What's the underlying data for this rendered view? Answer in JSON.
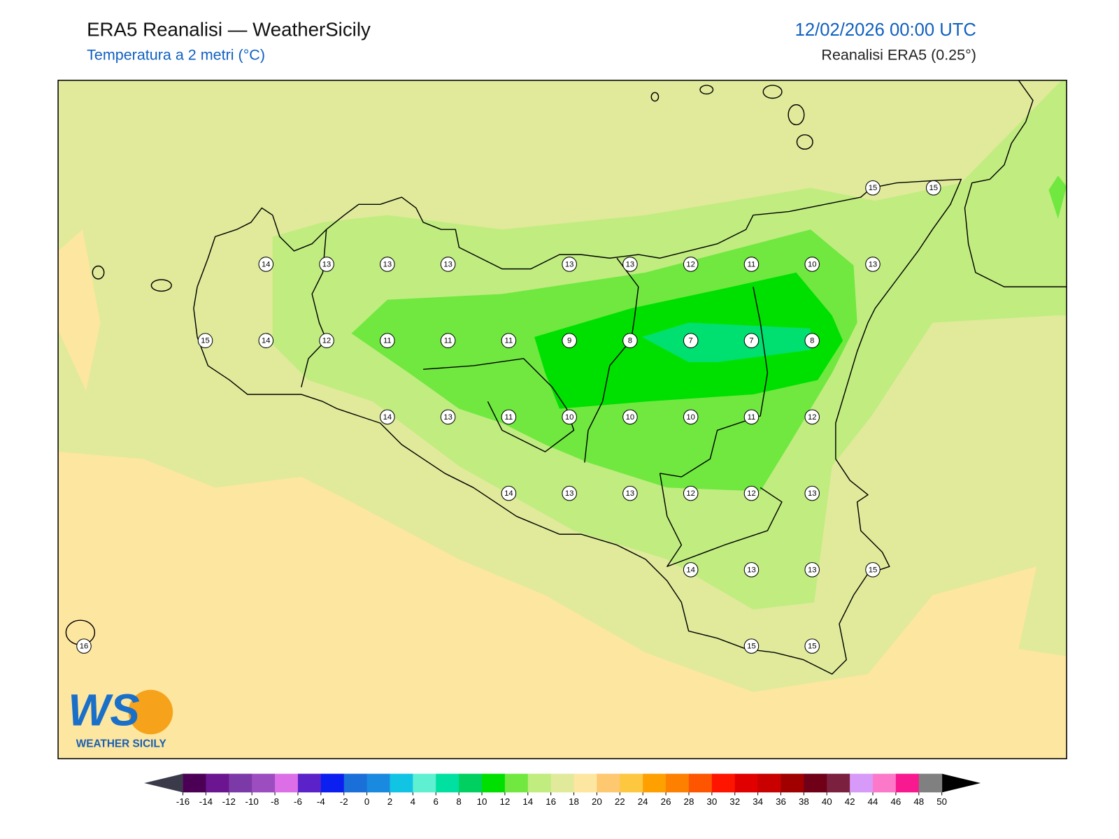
{
  "header": {
    "title": "ERA5 Reanalisi — WeatherSicily",
    "subtitle": "Temperatura a 2 metri (°C)",
    "datetime": "12/02/2026 00:00 UTC",
    "source": "Reanalisi ERA5 (0.25°)"
  },
  "stations": {
    "grid": [
      [
        null,
        null,
        null,
        null,
        null,
        null,
        null,
        null,
        null,
        null,
        null,
        null,
        null,
        15,
        15
      ],
      [
        null,
        null,
        null,
        14,
        13,
        13,
        13,
        null,
        13,
        13,
        12,
        11,
        10,
        13,
        null
      ],
      [
        null,
        null,
        15,
        14,
        12,
        11,
        11,
        11,
        9,
        8,
        7,
        7,
        8,
        null,
        null
      ],
      [
        null,
        null,
        null,
        null,
        null,
        14,
        13,
        11,
        10,
        10,
        10,
        11,
        12,
        null,
        null
      ],
      [
        null,
        null,
        null,
        null,
        null,
        null,
        null,
        14,
        13,
        13,
        12,
        12,
        13,
        null,
        null
      ],
      [
        null,
        null,
        null,
        null,
        null,
        null,
        null,
        null,
        null,
        null,
        14,
        13,
        13,
        15,
        null
      ],
      [
        16,
        null,
        null,
        null,
        null,
        null,
        null,
        null,
        null,
        null,
        null,
        15,
        15,
        null,
        null
      ]
    ]
  },
  "colorbar": {
    "ticks": [
      -16,
      -14,
      -12,
      -10,
      -8,
      -6,
      -4,
      -2,
      0,
      2,
      4,
      6,
      8,
      10,
      12,
      14,
      16,
      18,
      20,
      22,
      24,
      26,
      28,
      30,
      32,
      34,
      36,
      38,
      40,
      42,
      44,
      46,
      48,
      50
    ],
    "colors": [
      "#4b0055",
      "#6b1590",
      "#7b3aa8",
      "#9c4dbf",
      "#dc6fe8",
      "#5b22c9",
      "#0a1ff0",
      "#1a6fd8",
      "#1a8ae0",
      "#11c4e4",
      "#5ef0d0",
      "#00e0a0",
      "#00d060",
      "#00e000",
      "#70e840",
      "#c0ec80",
      "#e0ea9a",
      "#fde6a0",
      "#fdc870",
      "#fdc840",
      "#fda000",
      "#fd8000",
      "#fd5500",
      "#fd1500",
      "#e00000",
      "#c80000",
      "#a00000",
      "#700018",
      "#7c2040",
      "#d89af8",
      "#fc78c8",
      "#f81890",
      "#808080",
      "#404040"
    ]
  },
  "logo": {
    "mark": "WS",
    "name": "WEATHER SICILY"
  }
}
